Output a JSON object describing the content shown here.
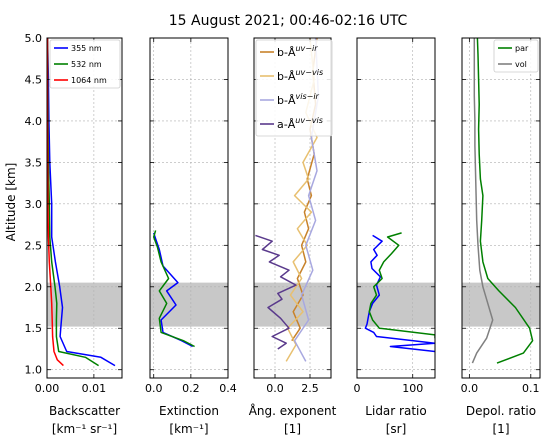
{
  "title": "15 August 2021; 00:46-02:16 UTC",
  "ylabel": "Altitude [km]",
  "ytick_labels": [
    "1.0",
    "1.5",
    "2.0",
    "2.5",
    "3.0",
    "3.5",
    "4.0",
    "4.5",
    "5.0"
  ],
  "shaded_layer_km": [
    1.52,
    2.05
  ],
  "chart_data": [
    {
      "type": "line",
      "id": "backscatter",
      "xlabel": "Backscatter",
      "xunit": "[km⁻¹ sr⁻¹]",
      "xlim": [
        0,
        0.016
      ],
      "ylim": [
        0.9,
        5.0
      ],
      "xticks": [
        0.0,
        0.01
      ],
      "xtick_labels": [
        "0.00",
        "0.01"
      ],
      "legend_placement": "top-right",
      "series": [
        {
          "name": "355 nm",
          "color": "#0000ff",
          "x": [
            0.0145,
            0.0115,
            0.0042,
            0.0028,
            0.003,
            0.0033,
            0.0027,
            0.0018,
            0.001,
            0.001,
            0.0006,
            0.0004,
            0.0003,
            0.0002,
            0.0001
          ],
          "y": [
            1.05,
            1.15,
            1.22,
            1.4,
            1.55,
            1.75,
            2.0,
            2.3,
            2.6,
            3.0,
            3.5,
            4.0,
            4.5,
            4.8,
            5.0
          ]
        },
        {
          "name": "532 nm",
          "color": "#008000",
          "x": [
            0.011,
            0.0082,
            0.0025,
            0.002,
            0.002,
            0.0021,
            0.0017,
            0.001,
            0.0006,
            0.0005,
            0.0003,
            0.0002,
            0.0001
          ],
          "y": [
            1.05,
            1.15,
            1.22,
            1.4,
            1.6,
            1.8,
            2.0,
            2.3,
            2.6,
            3.0,
            3.5,
            4.0,
            5.0
          ]
        },
        {
          "name": "1064 nm",
          "color": "#ff0000",
          "x": [
            0.0035,
            0.0022,
            0.0015,
            0.0012,
            0.0011,
            0.001,
            0.0008,
            0.0005,
            0.0003,
            0.0002,
            0.0001,
            0.0001
          ],
          "y": [
            1.05,
            1.12,
            1.22,
            1.4,
            1.6,
            1.8,
            2.0,
            2.3,
            2.6,
            3.0,
            4.0,
            5.0
          ]
        }
      ]
    },
    {
      "type": "line",
      "id": "extinction",
      "xlabel": "Extinction",
      "xunit": "[km⁻¹]",
      "xlim": [
        -0.02,
        0.4
      ],
      "ylim": [
        0.9,
        5.0
      ],
      "xticks": [
        0.0,
        0.2,
        0.4
      ],
      "xtick_labels": [
        "0.0",
        "0.2",
        "0.4"
      ],
      "series": [
        {
          "name": "355 nm",
          "color": "#0000ff",
          "x": [
            0.21,
            0.15,
            0.05,
            0.04,
            0.12,
            0.07,
            0.13,
            0.05,
            0.03,
            0.01,
            0.0
          ],
          "y": [
            1.28,
            1.35,
            1.45,
            1.6,
            1.78,
            1.95,
            2.05,
            2.25,
            2.45,
            2.58,
            2.65
          ]
        },
        {
          "name": "532 nm",
          "color": "#008000",
          "x": [
            0.22,
            0.16,
            0.04,
            0.03,
            0.07,
            0.03,
            0.08,
            0.04,
            0.02,
            0.0,
            0.01
          ],
          "y": [
            1.28,
            1.35,
            1.45,
            1.62,
            1.8,
            1.95,
            2.1,
            2.3,
            2.48,
            2.6,
            2.68
          ]
        }
      ]
    },
    {
      "type": "line",
      "id": "angstrom",
      "xlabel": "Ång. exponent",
      "xunit": "[1]",
      "xlim": [
        -1.5,
        4.0
      ],
      "ylim": [
        0.9,
        5.0
      ],
      "xticks": [
        0.0,
        2.5
      ],
      "xtick_labels": [
        "0.0",
        "2.5"
      ],
      "legend_placement": "top-left",
      "series": [
        {
          "name": "b-Å",
          "sup": "uv−ir",
          "color": "#c8822a",
          "x": [
            1.2,
            1.8,
            1.3,
            2.0,
            1.6,
            2.2,
            1.9,
            2.4,
            2.1,
            2.6,
            2.3,
            2.8,
            2.5,
            2.9,
            2.7,
            3.0
          ],
          "y": [
            1.35,
            1.5,
            1.7,
            1.9,
            2.1,
            2.3,
            2.5,
            2.7,
            2.9,
            3.1,
            3.3,
            3.6,
            3.9,
            4.2,
            4.6,
            5.0
          ]
        },
        {
          "name": "b-Å",
          "sup": "uv−vis",
          "color": "#e8c070",
          "x": [
            0.8,
            1.5,
            0.9,
            2.0,
            1.1,
            1.9,
            1.3,
            2.3,
            1.6,
            2.6,
            1.4,
            2.4,
            2.0,
            3.0,
            2.2,
            2.8,
            2.5
          ],
          "y": [
            1.1,
            1.3,
            1.5,
            1.7,
            1.9,
            2.1,
            2.3,
            2.5,
            2.7,
            2.9,
            3.1,
            3.3,
            3.5,
            3.8,
            4.1,
            4.5,
            5.0
          ]
        },
        {
          "name": "b-Å",
          "sup": "vis−ir",
          "color": "#a8a8e0",
          "x": [
            2.2,
            1.4,
            2.4,
            1.9,
            2.7,
            2.2,
            2.9,
            2.4,
            3.0,
            2.6,
            3.1,
            2.9
          ],
          "y": [
            1.1,
            1.35,
            1.6,
            1.9,
            2.2,
            2.5,
            2.8,
            3.1,
            3.4,
            3.8,
            4.3,
            5.0
          ]
        },
        {
          "name": "a-Å",
          "sup": "uv−vis",
          "color": "#5a3a8c",
          "x": [
            -1.4,
            -0.2,
            -0.9,
            0.3,
            -0.4,
            1.0,
            0.4,
            1.5,
            0.2,
            0.5,
            -0.5,
            0.4,
            1.0,
            -0.2,
            0.8,
            0.2
          ],
          "y": [
            2.62,
            2.55,
            2.45,
            2.38,
            2.3,
            2.2,
            2.12,
            2.02,
            1.92,
            1.85,
            1.75,
            1.62,
            1.5,
            1.4,
            1.32,
            1.25
          ]
        }
      ]
    },
    {
      "type": "line",
      "id": "lidar_ratio",
      "xlabel": "Lidar ratio",
      "xunit": "[sr]",
      "xlim": [
        0,
        140
      ],
      "ylim": [
        0.9,
        5.0
      ],
      "xticks": [
        0,
        100
      ],
      "xtick_labels": [
        "0",
        "100"
      ],
      "series": [
        {
          "name": "355 nm",
          "color": "#0000ff",
          "x": [
            28,
            45,
            30,
            36,
            25,
            27,
            42,
            35,
            40,
            28,
            22,
            18,
            15,
            30,
            35,
            140,
            60,
            140
          ],
          "y": [
            2.62,
            2.55,
            2.45,
            2.38,
            2.3,
            2.22,
            2.12,
            2.02,
            1.9,
            1.8,
            1.7,
            1.55,
            1.5,
            1.45,
            1.4,
            1.32,
            1.28,
            1.22
          ]
        },
        {
          "name": "532 nm",
          "color": "#008000",
          "x": [
            80,
            55,
            75,
            62,
            48,
            40,
            45,
            30,
            35,
            25,
            22,
            28,
            40,
            140,
            140
          ],
          "y": [
            2.65,
            2.6,
            2.5,
            2.4,
            2.3,
            2.2,
            2.1,
            2.0,
            1.9,
            1.8,
            1.7,
            1.6,
            1.5,
            1.42,
            1.38
          ]
        }
      ]
    },
    {
      "type": "line",
      "id": "depol",
      "xlabel": "Depol. ratio",
      "xunit": "[1]",
      "xlim": [
        -0.012,
        0.115
      ],
      "ylim": [
        0.9,
        5.0
      ],
      "xticks": [
        0.0,
        0.1
      ],
      "xtick_labels": [
        "0.0",
        "0.1"
      ],
      "legend_placement": "top-right",
      "series": [
        {
          "name": "par",
          "color": "#008000",
          "x": [
            0.045,
            0.088,
            0.103,
            0.098,
            0.075,
            0.048,
            0.03,
            0.022,
            0.018,
            0.02,
            0.022,
            0.018,
            0.016,
            0.015,
            0.016,
            0.015,
            0.014,
            0.013
          ],
          "y": [
            1.08,
            1.2,
            1.35,
            1.5,
            1.75,
            1.95,
            2.1,
            2.3,
            2.55,
            2.8,
            3.1,
            3.3,
            3.6,
            3.9,
            4.2,
            4.5,
            4.8,
            5.0
          ]
        },
        {
          "name": "vol",
          "color": "#808080",
          "x": [
            0.005,
            0.012,
            0.028,
            0.038,
            0.03,
            0.022,
            0.017,
            0.014,
            0.012,
            0.011,
            0.01,
            0.009,
            0.009,
            0.008,
            0.008,
            0.008
          ],
          "y": [
            1.08,
            1.2,
            1.38,
            1.6,
            1.8,
            2.0,
            2.2,
            2.5,
            2.8,
            3.1,
            3.4,
            3.7,
            4.0,
            4.3,
            4.6,
            5.0
          ]
        }
      ]
    }
  ]
}
